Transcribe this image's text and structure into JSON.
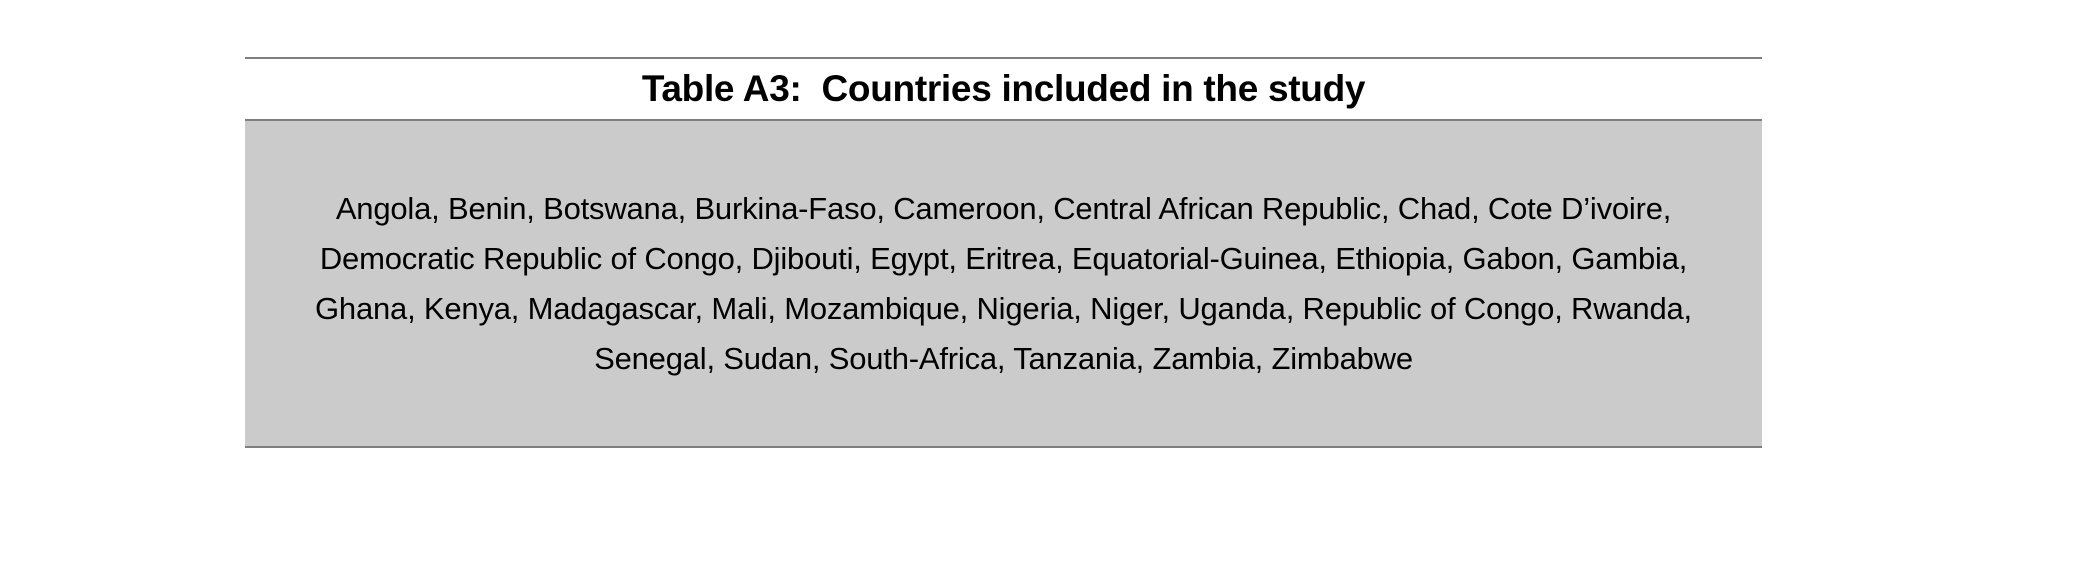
{
  "table": {
    "title": "Table A3:  Countries included in the study",
    "countries": "Angola, Benin, Botswana, Burkina-Faso, Cameroon, Central African Republic, Chad, Cote D’ivoire, Democratic Republic of Congo, Djibouti, Egypt, Eritrea, Equatorial-Guinea, Ethiopia, Gabon, Gambia, Ghana, Kenya, Madagascar, Mali, Mozambique, Nigeria, Niger, Uganda, Republic of Congo, Rwanda, Senegal, Sudan, South-Africa, Tanzania, Zambia, Zimbabwe"
  },
  "colors": {
    "rule": "#7f7f7f",
    "cell_background": "#cbcbcb"
  }
}
